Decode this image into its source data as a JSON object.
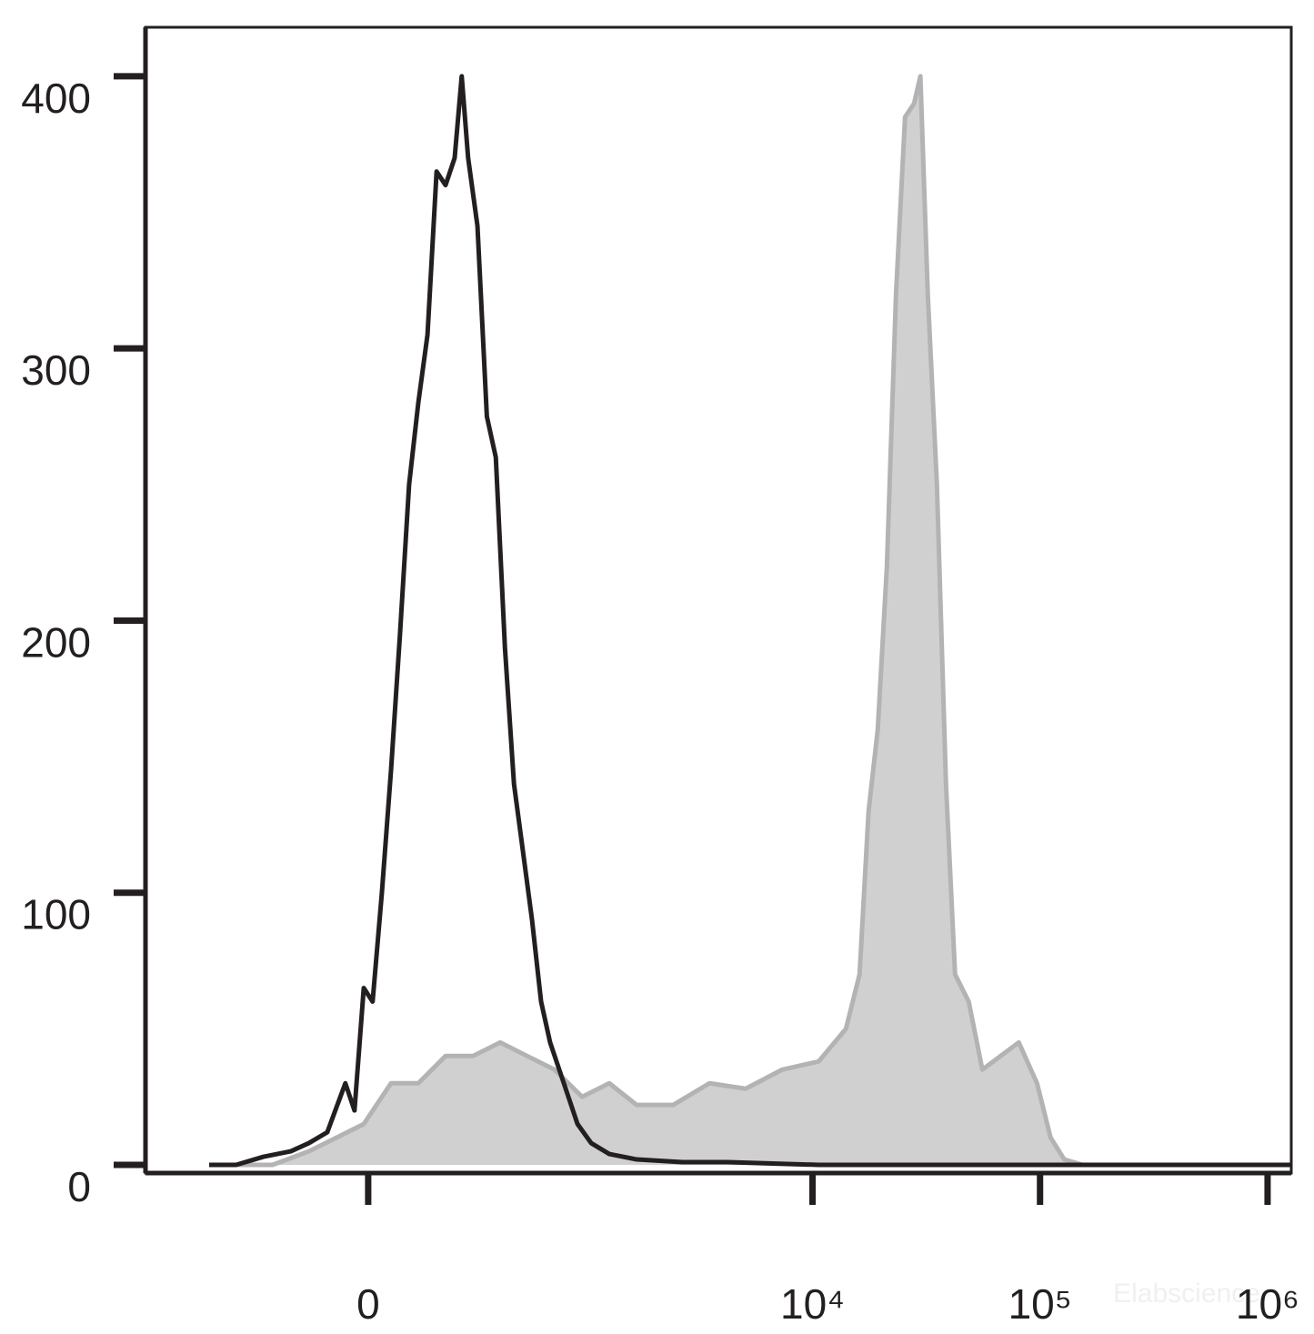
{
  "chart_data": {
    "type": "histogram-overlay",
    "xscale": "asinh",
    "xlim": [
      -1050,
      1271000
    ],
    "xticks": [
      0,
      {
        "value": 10000,
        "label": "10⁴"
      },
      {
        "value": 100000,
        "label": "10⁵"
      },
      {
        "value": 1000000,
        "label": "10⁶"
      }
    ],
    "ylim": [
      -3,
      418
    ],
    "yticks": [
      0,
      100,
      200,
      300,
      400
    ],
    "watermark": "Elabscience",
    "series": [
      {
        "kind": "area",
        "color": "#d0d0d0",
        "edge_color": "#b3b3b5",
        "x": [
          -535,
          -251,
          -142,
          -73,
          -10,
          52,
          118,
          193,
          283,
          395,
          535,
          718,
          959,
          1269,
          1681,
          2435,
          3523,
          5084,
          7359,
          10637,
          14027,
          16101,
          17639,
          19356,
          21230,
          23281,
          25511,
          27964,
          29793,
          32112,
          35212,
          38601,
          42325,
          48592,
          55772,
          67100,
          80659,
          97005,
          111277,
          127779,
          153647,
          1271000
        ],
        "values": [
          0,
          0,
          5,
          10,
          15,
          30,
          30,
          40,
          40,
          45,
          40,
          35,
          25,
          30,
          22,
          22,
          30,
          28,
          35,
          38,
          50,
          70,
          130,
          160,
          220,
          320,
          385,
          390,
          400,
          320,
          250,
          140,
          70,
          60,
          35,
          40,
          45,
          30,
          10,
          2,
          0,
          0
        ]
      },
      {
        "kind": "line",
        "color": "#231f20",
        "x": [
          -535,
          -395,
          -283,
          -193,
          -142,
          -95,
          -52,
          -31,
          -10,
          10,
          31,
          52,
          73,
          95,
          118,
          142,
          167,
          193,
          221,
          244,
          266,
          300,
          337,
          375,
          417,
          462,
          511,
          564,
          622,
          685,
          792,
          914,
          1053,
          1269,
          1681,
          2669,
          4235,
          10637,
          26715,
          1271000
        ],
        "values": [
          0,
          0,
          3,
          5,
          8,
          12,
          30,
          20,
          65,
          60,
          100,
          145,
          195,
          250,
          280,
          305,
          365,
          360,
          370,
          400,
          370,
          345,
          275,
          260,
          190,
          140,
          115,
          90,
          60,
          45,
          30,
          15,
          8,
          4,
          2,
          1,
          1,
          0,
          0,
          0
        ]
      }
    ]
  }
}
